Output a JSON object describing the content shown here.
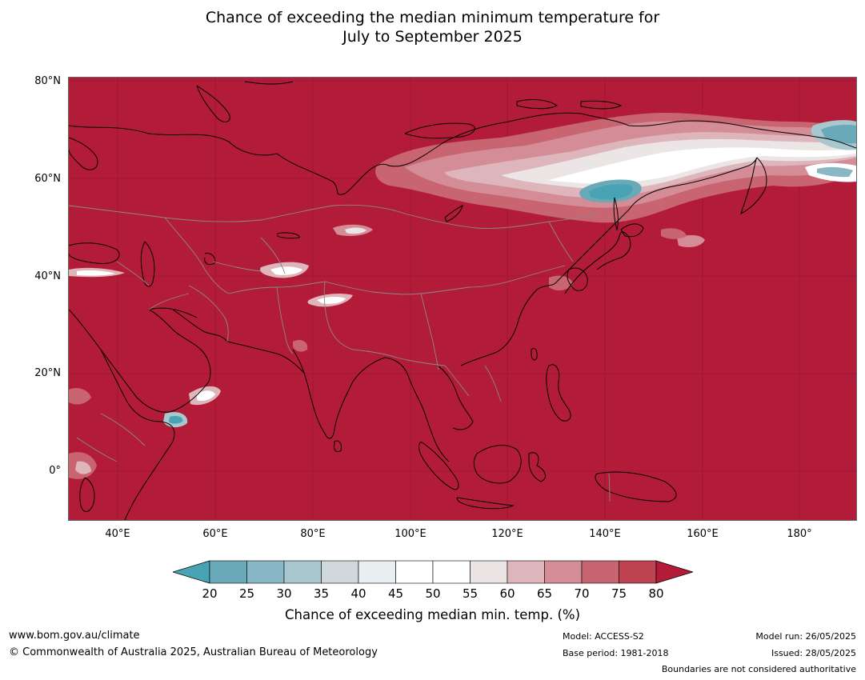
{
  "title_line1": "Chance of exceeding the median minimum temperature for",
  "title_line2": "July to September 2025",
  "map": {
    "ocean_color": "#b21c38",
    "lat_labels": [
      {
        "text": "80°N",
        "lat": 80
      },
      {
        "text": "60°N",
        "lat": 60
      },
      {
        "text": "40°N",
        "lat": 40
      },
      {
        "text": "20°N",
        "lat": 20
      },
      {
        "text": "0°",
        "lat": 0
      }
    ],
    "lon_labels": [
      {
        "text": "40°E",
        "lon": 40
      },
      {
        "text": "60°E",
        "lon": 60
      },
      {
        "text": "80°E",
        "lon": 80
      },
      {
        "text": "100°E",
        "lon": 100
      },
      {
        "text": "120°E",
        "lon": 120
      },
      {
        "text": "140°E",
        "lon": 140
      },
      {
        "text": "160°E",
        "lon": 160
      },
      {
        "text": "180°",
        "lon": 180
      }
    ]
  },
  "colorbar": {
    "ticks": [
      "20",
      "25",
      "30",
      "35",
      "40",
      "45",
      "50",
      "55",
      "60",
      "65",
      "70",
      "75",
      "80"
    ],
    "colors": [
      "#6aaab8",
      "#88b8c5",
      "#a8c7ce",
      "#d0d8db",
      "#e9eef0",
      "#ffffff",
      "#ffffff",
      "#ebe5e6",
      "#deb5bb",
      "#d48c96",
      "#c86570",
      "#bd4450"
    ],
    "under_color": "#4aa3b4",
    "over_color": "#b21c38",
    "label": "Chance of exceeding median min. temp. (%)"
  },
  "footer": {
    "url": "www.bom.gov.au/climate",
    "copyright": "© Commonwealth of Australia 2025, Australian Bureau of Meteorology",
    "model": "Model: ACCESS-S2",
    "base_period": "Base period: 1981-2018",
    "model_run": "Model run: 26/05/2025",
    "issued": "Issued: 28/05/2025",
    "disclaimer": "Boundaries are not considered authoritative"
  }
}
